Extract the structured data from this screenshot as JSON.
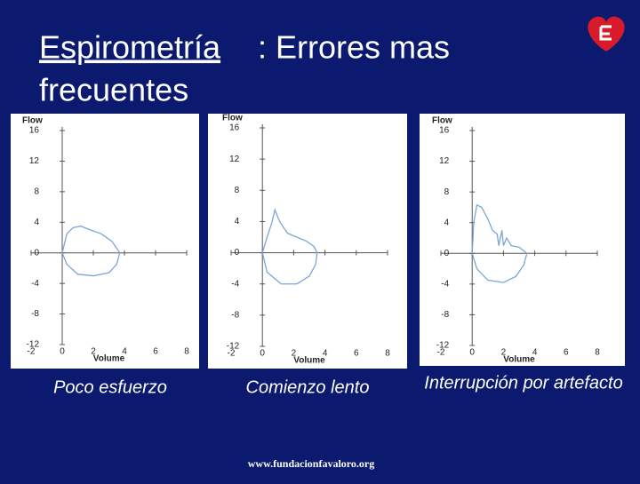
{
  "slide": {
    "title_main": "Espirometría",
    "title_rest": ": Errores mas",
    "title_line2": "frecuentes",
    "url": "www.fundacionfavaloro.org"
  },
  "chart_data": [
    {
      "type": "line",
      "caption": "Poco esfuerzo",
      "xlabel": "Volume",
      "ylabel": "Flow",
      "color": "#7aa6d8",
      "xlim": [
        -2,
        8
      ],
      "ylim": [
        -12,
        16
      ],
      "xticks": [
        -2,
        0,
        2,
        4,
        6,
        8
      ],
      "yticks": [
        -12,
        -8,
        -4,
        0,
        4,
        8,
        12,
        16
      ],
      "x": [
        0,
        0.3,
        0.7,
        1.2,
        1.8,
        2.5,
        3.2,
        3.7,
        3.5,
        3.0,
        2.0,
        1.0,
        0.3,
        0
      ],
      "values": [
        0,
        2.5,
        3.3,
        3.5,
        3.0,
        2.5,
        1.5,
        0,
        -1.5,
        -2.6,
        -3.0,
        -2.8,
        -1.5,
        0
      ]
    },
    {
      "type": "line",
      "caption": "Comienzo lento",
      "xlabel": "Volume",
      "ylabel": "Flow",
      "color": "#7aa6d8",
      "xlim": [
        -2,
        8
      ],
      "ylim": [
        -12,
        16
      ],
      "xticks": [
        -2,
        0,
        2,
        4,
        6,
        8
      ],
      "yticks": [
        -12,
        -8,
        -4,
        0,
        4,
        8,
        12,
        16
      ],
      "x": [
        0,
        0.3,
        0.6,
        0.8,
        1.1,
        1.6,
        2.2,
        2.8,
        3.3,
        3.5,
        3.4,
        3.0,
        2.2,
        1.2,
        0.3,
        0
      ],
      "values": [
        0,
        2,
        3.8,
        5.5,
        4,
        2.5,
        2,
        1.5,
        0.8,
        0,
        -1.5,
        -3,
        -4,
        -4,
        -2.5,
        0
      ]
    },
    {
      "type": "line",
      "caption": "Interrupción por artefacto",
      "xlabel": "Volume",
      "ylabel": "Flow",
      "color": "#7aa6d8",
      "xlim": [
        -2,
        8
      ],
      "ylim": [
        -12,
        16
      ],
      "xticks": [
        -2,
        0,
        2,
        4,
        6,
        8
      ],
      "yticks": [
        -12,
        -8,
        -4,
        0,
        4,
        8,
        12,
        16
      ],
      "x": [
        0,
        0.1,
        0.3,
        0.6,
        1.0,
        1.3,
        1.6,
        1.7,
        1.9,
        2.0,
        2.2,
        2.5,
        3.0,
        3.5,
        3.3,
        2.8,
        2.0,
        1.0,
        0.3,
        0
      ],
      "values": [
        0,
        4,
        6.3,
        6,
        4.5,
        3,
        2.5,
        1,
        3,
        1,
        2,
        1,
        0.8,
        0,
        -1.5,
        -3,
        -3.8,
        -3.5,
        -2,
        0
      ]
    }
  ]
}
